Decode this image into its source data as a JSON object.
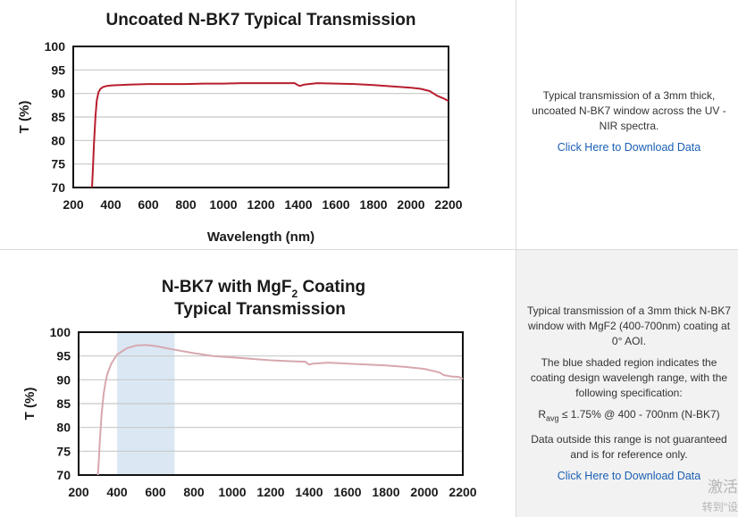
{
  "chart_data": [
    {
      "type": "line",
      "title": "Uncoated N-BK7 Typical Transmission",
      "xlabel": "Wavelength (nm)",
      "ylabel": "T (%)",
      "xlim": [
        200,
        2200
      ],
      "ylim": [
        70,
        100
      ],
      "xticks": [
        200,
        400,
        600,
        800,
        1000,
        1200,
        1400,
        1600,
        1800,
        2000,
        2200
      ],
      "yticks": [
        70,
        75,
        80,
        85,
        90,
        95,
        100
      ],
      "grid": true,
      "color": "#b81e2d",
      "series": [
        {
          "name": "Transmission",
          "x": [
            300,
            305,
            310,
            318,
            325,
            335,
            345,
            360,
            380,
            400,
            450,
            500,
            600,
            700,
            800,
            900,
            1000,
            1100,
            1200,
            1300,
            1380,
            1400,
            1410,
            1430,
            1500,
            1600,
            1700,
            1800,
            1900,
            2000,
            2050,
            2100,
            2140,
            2170,
            2200
          ],
          "y": [
            70,
            74,
            79,
            85,
            88.5,
            90.3,
            91.0,
            91.4,
            91.6,
            91.7,
            91.8,
            91.9,
            92.0,
            92.0,
            92.0,
            92.1,
            92.1,
            92.2,
            92.2,
            92.2,
            92.2,
            91.7,
            91.6,
            91.9,
            92.2,
            92.1,
            92.0,
            91.8,
            91.5,
            91.2,
            91.0,
            90.5,
            89.5,
            89.0,
            88.4
          ]
        }
      ]
    },
    {
      "type": "line",
      "title_line1": "N-BK7 with MgF",
      "title_sub": "2",
      "title_line1_end": " Coating",
      "title_line2": "Typical Transmission",
      "xlabel": "Wavelength (nm)",
      "ylabel": "T (%)",
      "xlim": [
        200,
        2200
      ],
      "ylim": [
        70,
        100
      ],
      "xticks": [
        200,
        400,
        600,
        800,
        1000,
        1200,
        1400,
        1600,
        1800,
        2000,
        2200
      ],
      "yticks": [
        70,
        75,
        80,
        85,
        90,
        95,
        100
      ],
      "grid": true,
      "color": "#d6a8ae",
      "shaded_region": {
        "x_start": 400,
        "x_end": 700,
        "color": "#dbe8f4"
      },
      "series": [
        {
          "name": "Transmission",
          "x": [
            300,
            305,
            310,
            320,
            330,
            340,
            350,
            370,
            400,
            450,
            500,
            550,
            600,
            650,
            700,
            800,
            900,
            1000,
            1100,
            1200,
            1300,
            1380,
            1400,
            1420,
            1500,
            1600,
            1700,
            1800,
            1900,
            2000,
            2050,
            2080,
            2100,
            2140,
            2180,
            2200
          ],
          "y": [
            70,
            73,
            77,
            83,
            87,
            89.5,
            91.3,
            93.4,
            95.3,
            96.6,
            97.2,
            97.3,
            97.1,
            96.7,
            96.3,
            95.6,
            95.0,
            94.7,
            94.4,
            94.1,
            93.9,
            93.8,
            93.2,
            93.4,
            93.6,
            93.4,
            93.2,
            93.0,
            92.7,
            92.3,
            91.8,
            91.5,
            91.0,
            90.7,
            90.6,
            90.2
          ]
        }
      ]
    }
  ],
  "panels": [
    {
      "description": "Typical transmission of a 3mm thick, uncoated N-BK7 window across the UV - NIR spectra.",
      "link": "Click Here to Download Data"
    },
    {
      "description": "Typical transmission of a 3mm thick N-BK7 window with MgF2 (400-700nm) coating at 0° AOI.",
      "note": "The blue shaded region indicates the coating design wavelengh range, with the following specification:",
      "spec_r": "R",
      "spec_sub": "avg",
      "spec_rest": " ≤ 1.75% @ 400 - 700nm (N-BK7)",
      "disclaimer": "Data outside this range is not guaranteed and is for reference only.",
      "link": "Click Here to Download Data"
    }
  ],
  "watermark": {
    "line1": "激活",
    "line2": "转到\"设"
  }
}
